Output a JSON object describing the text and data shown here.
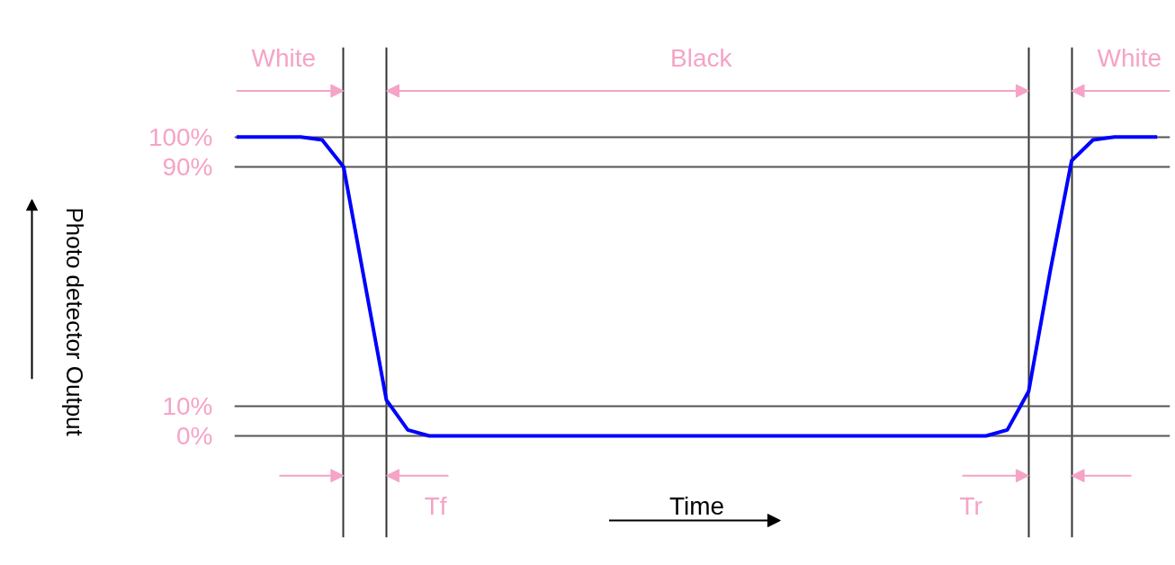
{
  "chart_data": {
    "type": "line",
    "categories": [
      null,
      null,
      null,
      null,
      null,
      null,
      null,
      null,
      null,
      null,
      null,
      null,
      null,
      null,
      null,
      null,
      null,
      null,
      null,
      null,
      null,
      null,
      null,
      null,
      null,
      null,
      null,
      null,
      null,
      null,
      null,
      null,
      null,
      null,
      null,
      null,
      null,
      null,
      null,
      null,
      null,
      null,
      null,
      null
    ],
    "series": [
      {
        "color": "#0000ff",
        "values": [
          100,
          100,
          100,
          100,
          99,
          90,
          51,
          12,
          2,
          0,
          0,
          0,
          0,
          0,
          0,
          0,
          0,
          0,
          0,
          0,
          0,
          0,
          0,
          0,
          0,
          0,
          0,
          0,
          0,
          0,
          0,
          0,
          0,
          0,
          0,
          0,
          2,
          15,
          55,
          92,
          99,
          100,
          100,
          100
        ]
      }
    ],
    "ylim": [
      -34,
      130
    ],
    "yticks": [
      {
        "value": 0,
        "label": "0%"
      },
      {
        "value": 10,
        "label": "10%"
      },
      {
        "value": 90,
        "label": "90%"
      },
      {
        "value": 100,
        "label": "100%"
      }
    ],
    "grid": true,
    "tick_labels": "y",
    "ylabel": "Photo detector Output",
    "annotations": [
      "White",
      "Black",
      "White",
      "Tf",
      "Tr",
      "Time"
    ]
  }
}
